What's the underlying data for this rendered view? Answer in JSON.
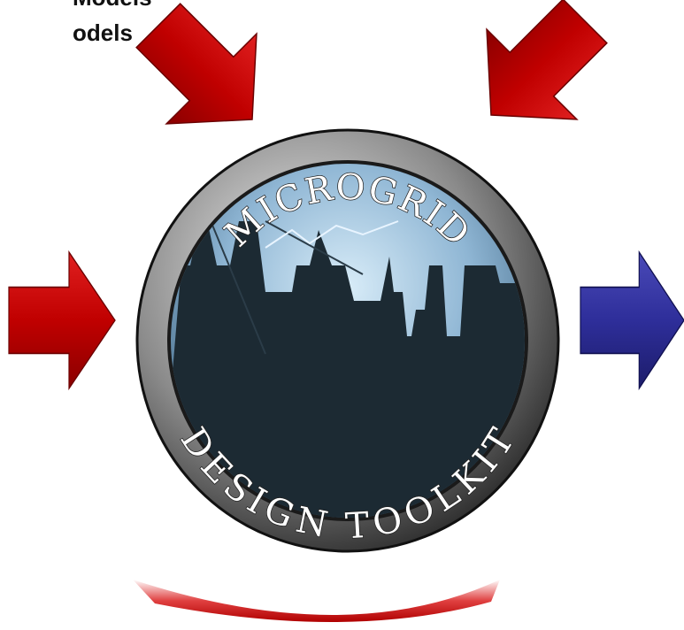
{
  "header": {
    "lines": [
      "Models",
      "odels"
    ]
  },
  "logo": {
    "top_text": "MICROGRID",
    "bottom_text": "DESIGN TOOLKIT"
  }
}
